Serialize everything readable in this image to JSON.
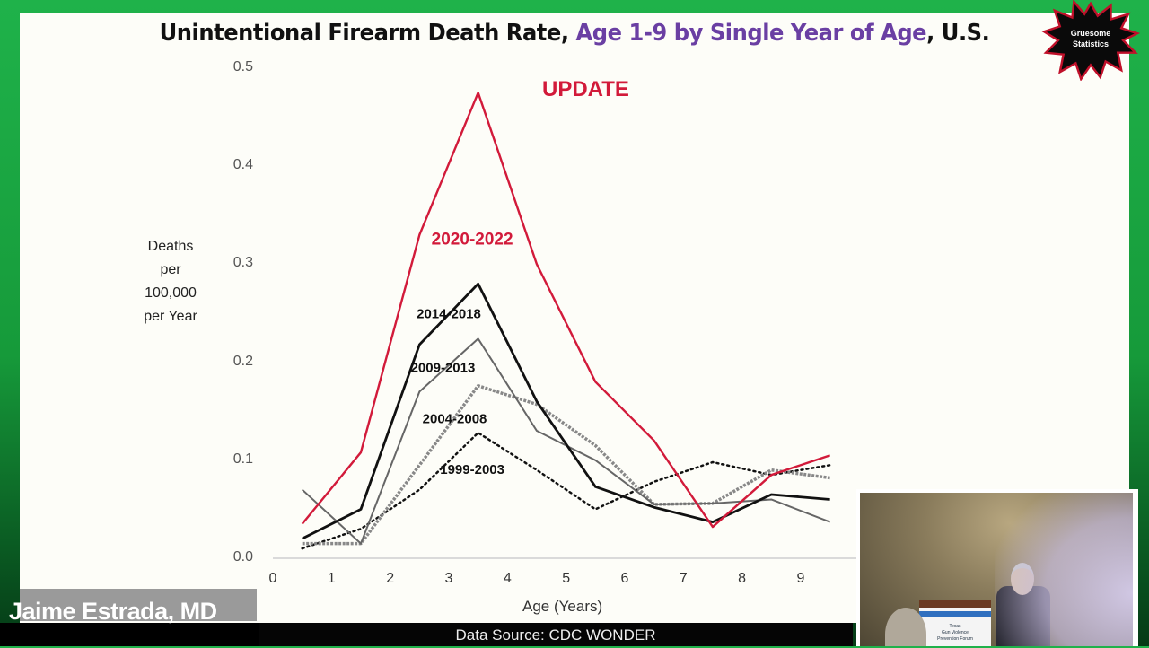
{
  "slide": {
    "title_part1": "Unintentional Firearm Death Rate, ",
    "title_part2": "Age 1-9 by Single Year of Age",
    "title_part3": ", U.S.",
    "badge_line1": "Gruesome",
    "badge_line2": "Statistics",
    "update_label": "UPDATE",
    "source": "Data Source:  CDC WONDER"
  },
  "overlay": {
    "presenter_name": "Jaime Estrada, MD",
    "podium_text": [
      "Texas",
      "Gun Violence",
      "Prevention Forum"
    ]
  },
  "colors": {
    "accent_red": "#d21a3a",
    "title_purple": "#6a3fa3",
    "background_green": "#1fb24a"
  },
  "chart_data": {
    "type": "line",
    "title": "Unintentional Firearm Death Rate, Age 1-9 by Single Year of Age, U.S.",
    "xlabel": "Age (Years)",
    "ylabel": "Deaths per 100,000 per Year",
    "ylabel_lines": [
      "Deaths",
      "per",
      "100,000",
      "per Year"
    ],
    "x_ticks": [
      "0",
      "1",
      "2",
      "3",
      "4",
      "5",
      "6",
      "7",
      "8",
      "9"
    ],
    "y_ticks": [
      "0.0",
      "0.1",
      "0.2",
      "0.3",
      "0.4",
      "0.5"
    ],
    "ylim": [
      0,
      0.5
    ],
    "xlim": [
      0,
      10
    ],
    "grid": false,
    "legend_position": "inline labels",
    "x": [
      0.5,
      1.5,
      2.5,
      3.5,
      4.5,
      5.5,
      6.5,
      7.5,
      8.5,
      9.5
    ],
    "series": [
      {
        "name": "2020-2022",
        "style": "solid",
        "color": "#d21a3a",
        "values": [
          0.035,
          0.108,
          0.33,
          0.475,
          0.3,
          0.18,
          0.12,
          0.032,
          0.085,
          0.105
        ]
      },
      {
        "name": "2014-2018",
        "style": "solid",
        "color": "#111111",
        "values": [
          0.02,
          0.05,
          0.218,
          0.28,
          0.16,
          0.073,
          0.052,
          0.037,
          0.065,
          0.06
        ]
      },
      {
        "name": "2009-2013",
        "style": "solid",
        "color": "#666666",
        "values": [
          0.07,
          0.015,
          0.17,
          0.224,
          0.13,
          0.1,
          0.055,
          0.056,
          0.06,
          0.037
        ]
      },
      {
        "name": "2004-2008",
        "style": "hatched",
        "color": "#888888",
        "values": [
          0.015,
          0.015,
          0.095,
          0.176,
          0.157,
          0.115,
          0.055,
          0.056,
          0.09,
          0.082
        ]
      },
      {
        "name": "1999-2003",
        "style": "dotted",
        "color": "#111111",
        "values": [
          0.01,
          0.03,
          0.07,
          0.128,
          0.09,
          0.05,
          0.078,
          0.098,
          0.085,
          0.095
        ]
      }
    ],
    "labels": [
      {
        "text": "2020-2022",
        "x": 3.4,
        "y": 0.32
      },
      {
        "text": "2014-2018",
        "x": 3.0,
        "y": 0.245
      },
      {
        "text": "2009-2013",
        "x": 2.9,
        "y": 0.19
      },
      {
        "text": "2004-2008",
        "x": 3.1,
        "y": 0.138
      },
      {
        "text": "1999-2003",
        "x": 3.4,
        "y": 0.086
      }
    ]
  }
}
